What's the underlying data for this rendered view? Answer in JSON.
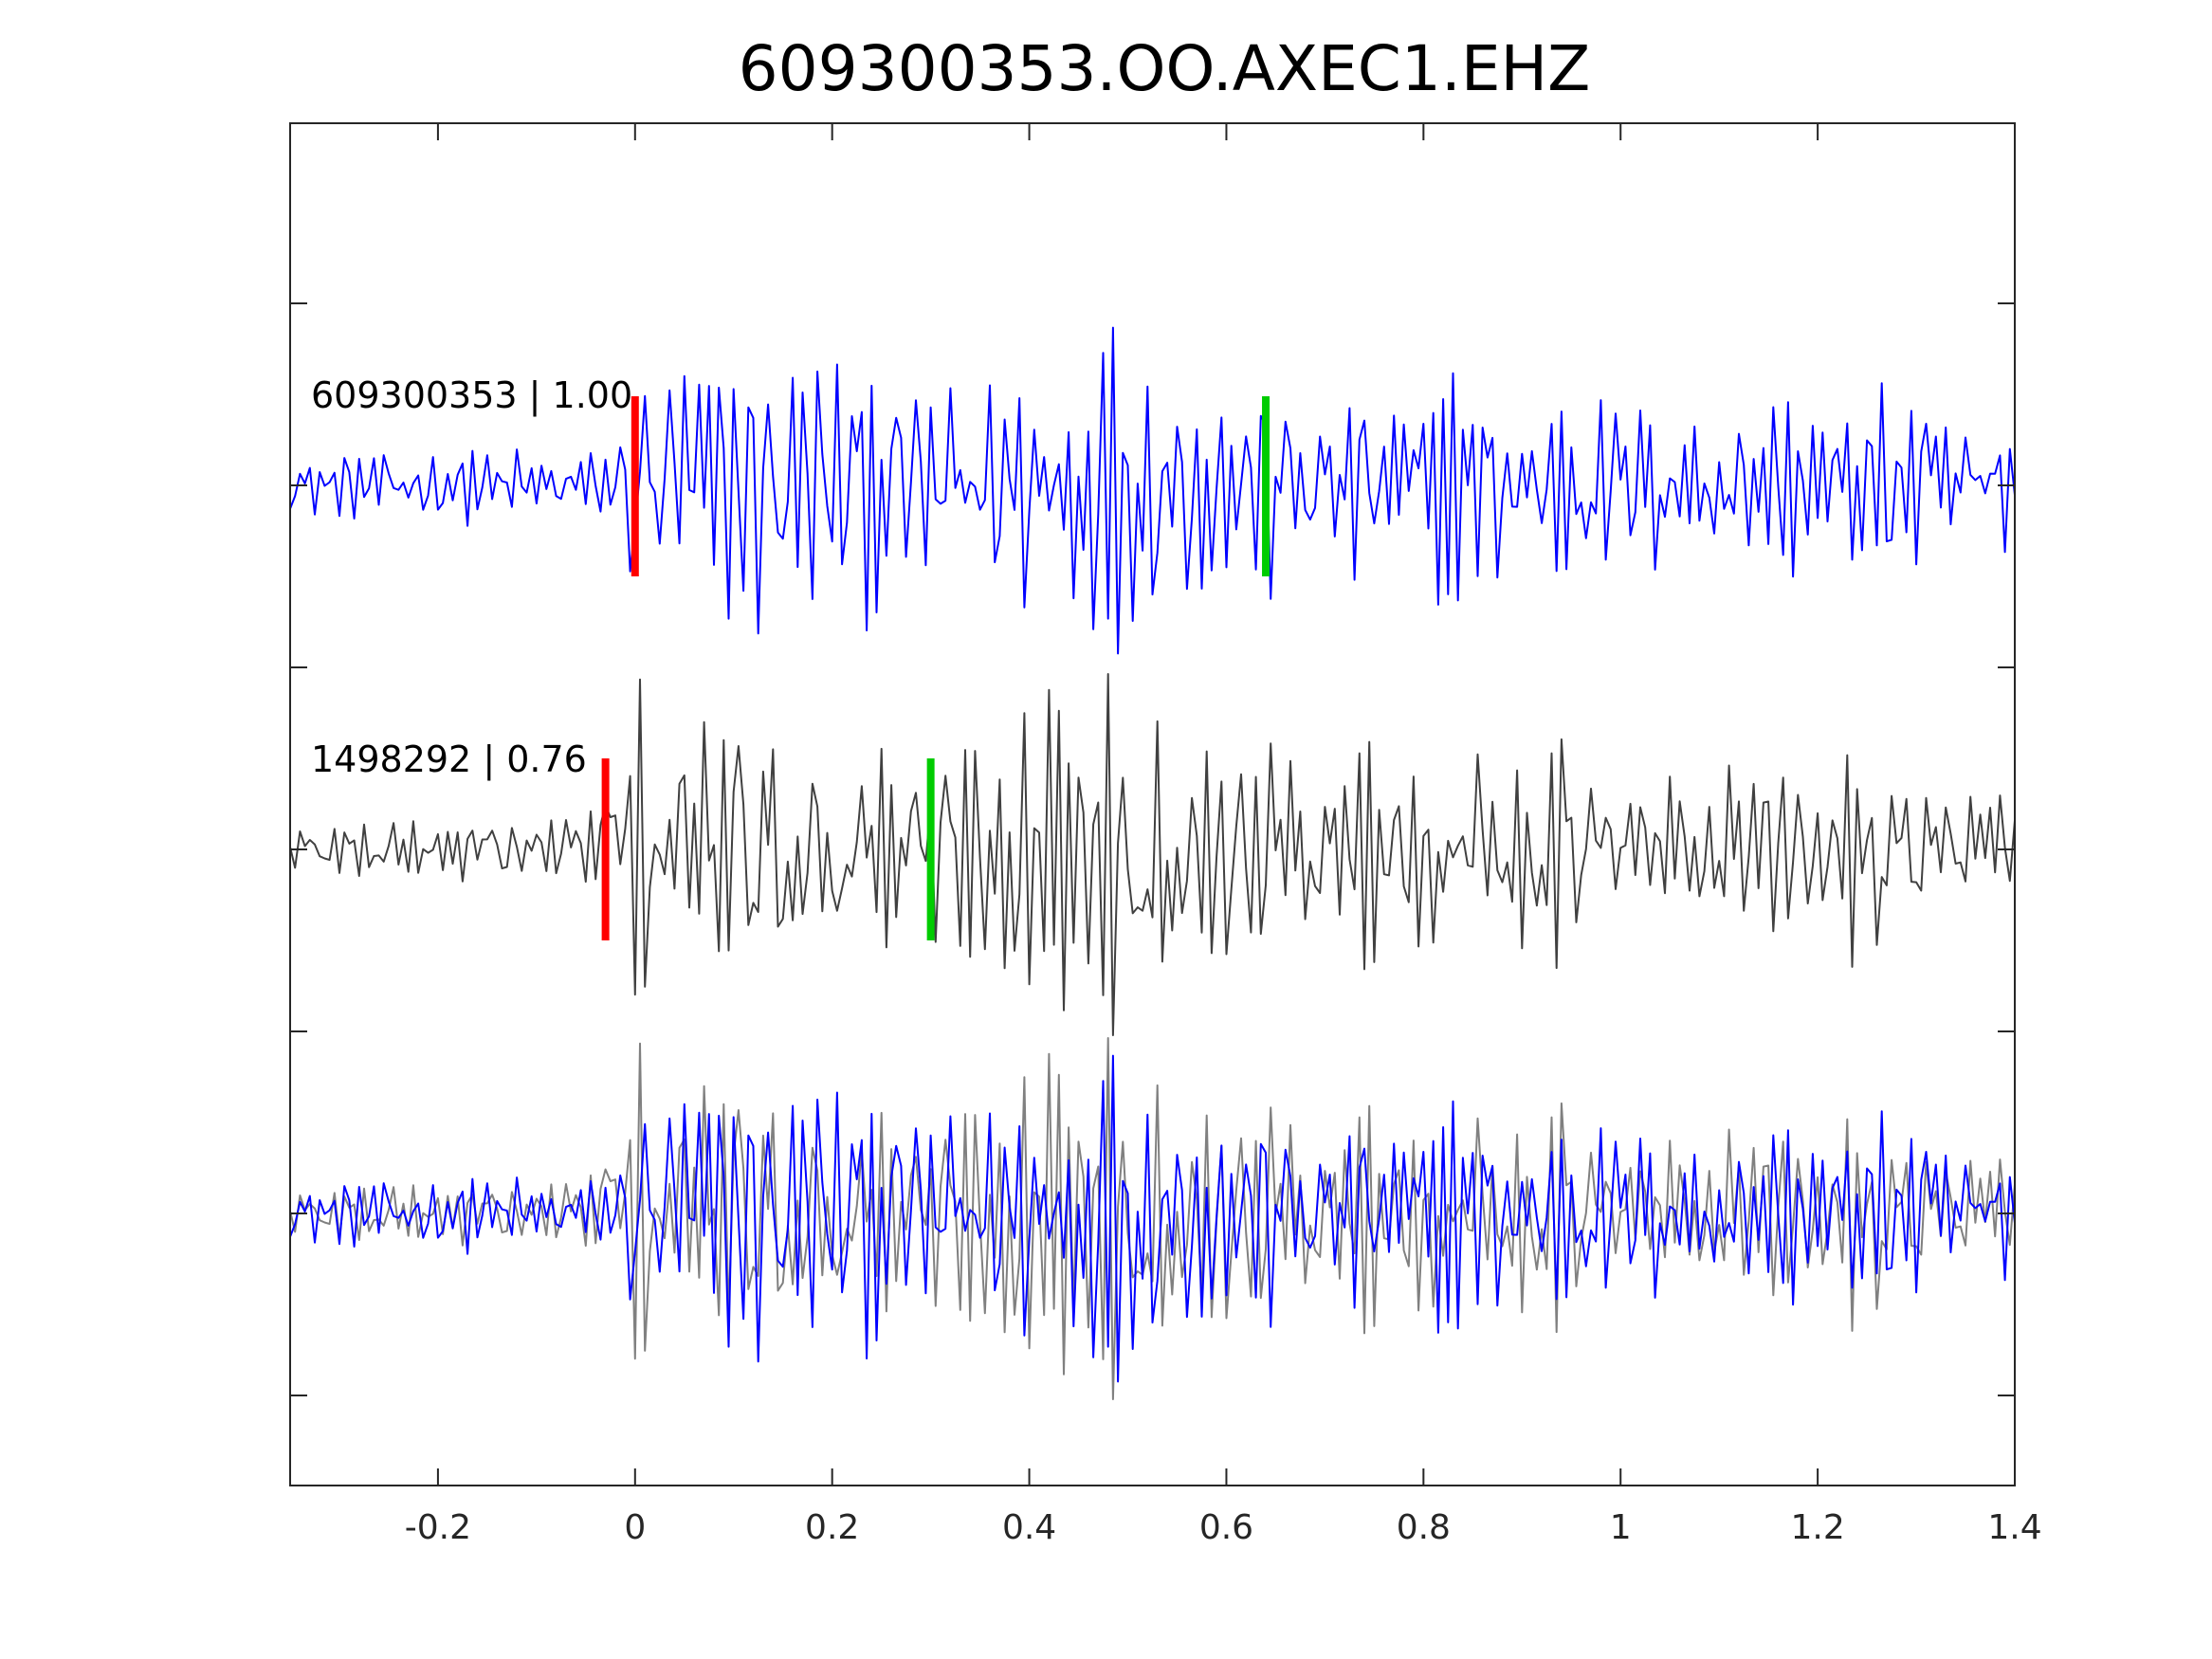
{
  "chart_data": {
    "type": "line",
    "title": "609300353.OO.AXEC1.EHZ",
    "xlabel": "",
    "ylabel": "",
    "xlim": [
      -0.35,
      1.4
    ],
    "x_ticks": [
      "-0.2",
      "0",
      "0.2",
      "0.4",
      "0.6",
      "0.8",
      "1",
      "1.2",
      "1.4"
    ],
    "x_tick_values": [
      -0.2,
      0,
      0.2,
      0.4,
      0.6,
      0.8,
      1.0,
      1.2,
      1.4
    ],
    "y_tick_labels_shown": false,
    "grid": false,
    "sample_interval": 0.005,
    "colors": {
      "reference_trace": "#0000ff",
      "matched_trace": "#404040",
      "overlay_matched_trace": "#808080",
      "p_pick": "#ff0000",
      "s_pick": "#00cc00",
      "axes": "#262626"
    },
    "traces": [
      {
        "label": "609300353 | 1.00",
        "event_id": "609300353",
        "correlation": "1.00",
        "row": 1,
        "color": "#0000ff",
        "p_pick_time": 0.0,
        "s_pick_time": 0.64
      },
      {
        "label": "1498292 | 0.76",
        "event_id": "1498292",
        "correlation": "0.76",
        "row": 2,
        "color": "#404040",
        "p_pick_time": -0.03,
        "s_pick_time": 0.3
      },
      {
        "label": "",
        "row": 3,
        "description": "overlay of both waveforms"
      }
    ],
    "waveform_envelope": [
      {
        "t": -0.35,
        "amplitude": 0.2
      },
      {
        "t": -0.02,
        "amplitude": 0.25
      },
      {
        "t": 0.0,
        "amplitude": 1.0
      },
      {
        "t": 0.15,
        "amplitude": 1.0
      },
      {
        "t": 0.3,
        "amplitude": 0.7
      },
      {
        "t": 0.48,
        "amplitude": 1.05
      },
      {
        "t": 0.7,
        "amplitude": 0.6
      },
      {
        "t": 0.85,
        "amplitude": 0.75
      },
      {
        "t": 1.1,
        "amplitude": 0.5
      },
      {
        "t": 1.3,
        "amplitude": 0.65
      },
      {
        "t": 1.4,
        "amplitude": 0.4
      }
    ]
  }
}
